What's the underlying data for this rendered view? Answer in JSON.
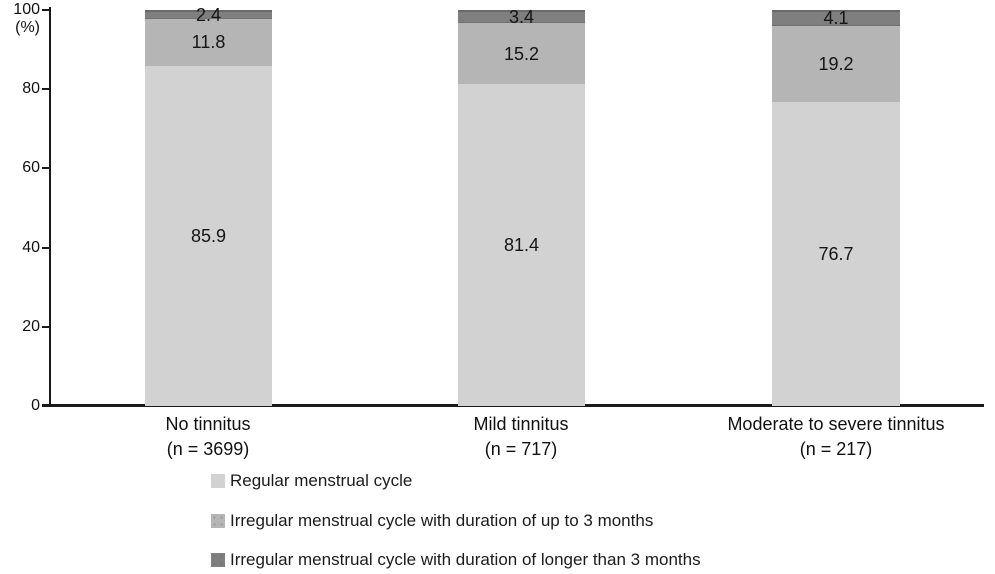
{
  "figure": {
    "background": "#ffffff",
    "text_color": "#1b1b1b"
  },
  "chart_data": {
    "type": "bar",
    "stacked": true,
    "title": "",
    "xlabel": "",
    "ylabel": "(%)",
    "ylim": [
      0,
      100
    ],
    "yticks": [
      0,
      20,
      40,
      60,
      80,
      100
    ],
    "grid": false,
    "legend_position": "bottom-left",
    "categories": [
      {
        "label": "No tinnitus",
        "sublabel": "(n = 3699)"
      },
      {
        "label": "Mild tinnitus",
        "sublabel": "(n = 717)"
      },
      {
        "label": "Moderate to severe tinnitus",
        "sublabel": "(n = 217)"
      }
    ],
    "series": [
      {
        "key": "regular-menstrual-cycle",
        "name": "Regular menstrual cycle",
        "color": "#d2d2d2",
        "textured": false,
        "values": [
          85.9,
          81.4,
          76.7
        ]
      },
      {
        "key": "irregular-up-to-3-months",
        "name": "Irregular menstrual cycle with duration of up to 3 months",
        "color": "#b5b5b5",
        "textured": true,
        "values": [
          11.8,
          15.2,
          19.2
        ]
      },
      {
        "key": "irregular-longer-than-3-months",
        "name": "Irregular menstrual cycle with duration of longer than 3 months",
        "color": "#7f7f7f",
        "textured": true,
        "values": [
          2.4,
          3.4,
          4.1
        ]
      }
    ]
  }
}
